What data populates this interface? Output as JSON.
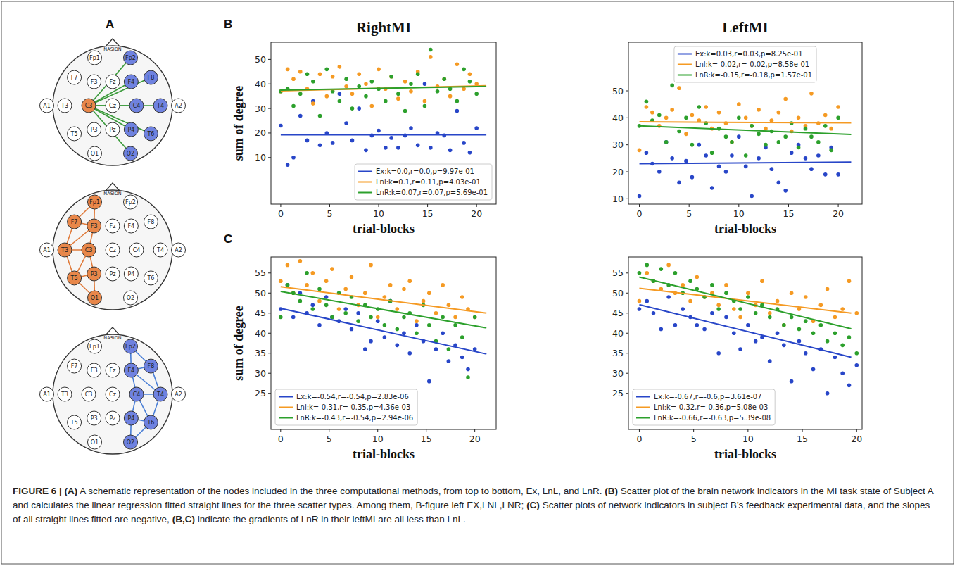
{
  "panel_labels": [
    "A",
    "B",
    "C"
  ],
  "head_diagrams": {
    "reference_label": "NASION",
    "electrodes": [
      "Fp1",
      "Fp2",
      "F7",
      "F3",
      "Fz",
      "F4",
      "F8",
      "A1",
      "T3",
      "C3",
      "Cz",
      "C4",
      "T4",
      "A2",
      "T5",
      "P3",
      "Pz",
      "P4",
      "T6",
      "O1",
      "O2"
    ],
    "diagrams": [
      {
        "color": "#3a9a3a",
        "left_nodes": [
          9
        ],
        "right_nodes": [
          1,
          5,
          6,
          11,
          12,
          17,
          18,
          20
        ],
        "edges": [
          [
            9,
            1
          ],
          [
            9,
            5
          ],
          [
            9,
            6
          ],
          [
            9,
            11
          ],
          [
            9,
            12
          ],
          [
            9,
            17
          ],
          [
            9,
            18
          ],
          [
            9,
            20
          ]
        ]
      },
      {
        "color": "#e07a3a",
        "left_nodes": [
          0,
          2,
          3,
          8,
          9,
          14,
          15,
          19
        ],
        "right_nodes": [],
        "edges": [
          [
            0,
            2
          ],
          [
            0,
            3
          ],
          [
            2,
            3
          ],
          [
            2,
            8
          ],
          [
            3,
            9
          ],
          [
            8,
            9
          ],
          [
            8,
            14
          ],
          [
            9,
            15
          ],
          [
            14,
            15
          ],
          [
            14,
            19
          ],
          [
            15,
            19
          ],
          [
            3,
            8
          ],
          [
            9,
            14
          ]
        ]
      },
      {
        "color": "#4a7fd6",
        "left_nodes": [],
        "right_nodes": [
          1,
          5,
          6,
          11,
          12,
          17,
          18,
          20
        ],
        "edges": [
          [
            1,
            6
          ],
          [
            1,
            5
          ],
          [
            6,
            5
          ],
          [
            6,
            12
          ],
          [
            5,
            11
          ],
          [
            12,
            11
          ],
          [
            12,
            18
          ],
          [
            11,
            17
          ],
          [
            18,
            17
          ],
          [
            18,
            20
          ],
          [
            17,
            20
          ],
          [
            5,
            12
          ],
          [
            11,
            18
          ]
        ]
      }
    ]
  },
  "chart_data": [
    {
      "type": "scatter",
      "title": "RightMI",
      "x_label": "trial-blocks",
      "y_label": "sum of degree",
      "x": [
        0,
        0.7,
        1.3,
        2,
        2.7,
        3.3,
        4,
        4.7,
        5.3,
        6,
        6.7,
        7.3,
        8,
        8.7,
        9.3,
        10,
        10.7,
        11.3,
        12,
        12.7,
        13.3,
        14,
        14.7,
        15.3,
        16,
        16.7,
        17.3,
        18,
        18.7,
        19.3,
        20
      ],
      "xlim": [
        -1,
        22
      ],
      "xticks": [
        0,
        5,
        10,
        15,
        20
      ],
      "ylim": [
        -9,
        57
      ],
      "yticks": [
        10,
        20,
        30,
        40,
        50
      ],
      "legend": "lower right",
      "fit_x": [
        0,
        21
      ],
      "series": [
        {
          "name": "Ex:k=0.0,r=0.0,p=9.97e-01",
          "color": "#2846c8",
          "values": [
            23,
            7,
            10,
            27,
            17,
            33,
            15,
            20,
            16,
            36,
            24,
            17,
            30,
            13,
            19,
            21,
            14,
            18,
            14,
            19,
            22,
            15,
            40,
            14,
            20,
            19,
            13,
            29,
            16,
            12,
            22
          ],
          "fit_values": [
            19.3,
            19.3
          ]
        },
        {
          "name": "Lnl:k=0.1,r=0.11,p=4.03e-01",
          "color": "#f59a23",
          "values": [
            37,
            46,
            42,
            45,
            38,
            32,
            44,
            35,
            43,
            47,
            39,
            36,
            44,
            40,
            31,
            46,
            38,
            43,
            34,
            41,
            37,
            45,
            33,
            51,
            39,
            42,
            35,
            48,
            38,
            44,
            40
          ],
          "fit_values": [
            37.2,
            39.3
          ]
        },
        {
          "name": "LnR:k=0.07,r=0.07,p=5.69e-01",
          "color": "#2ca02c",
          "values": [
            37,
            38,
            31,
            36,
            44,
            41,
            27,
            46,
            37,
            33,
            42,
            30,
            39,
            35,
            41,
            38,
            33,
            43,
            36,
            29,
            40,
            44,
            31,
            54,
            37,
            42,
            38,
            33,
            46,
            41,
            36
          ],
          "fit_values": [
            37.5,
            39.0
          ]
        }
      ]
    },
    {
      "type": "scatter",
      "title": "LeftMI",
      "x_label": "trial-blocks",
      "x": [
        0,
        0.7,
        1.3,
        2,
        2.7,
        3.3,
        4,
        4.7,
        5.3,
        6,
        6.7,
        7.3,
        8,
        8.7,
        9.3,
        10,
        10.7,
        11.3,
        12,
        12.7,
        13.3,
        14,
        14.7,
        15.3,
        16,
        16.7,
        17.3,
        18,
        18.7,
        19.3,
        20
      ],
      "xlim": [
        -1.1,
        22.4
      ],
      "xticks": [
        0,
        5,
        10,
        15,
        20
      ],
      "ylim": [
        8,
        68
      ],
      "yticks": [
        10,
        20,
        30,
        40,
        50
      ],
      "legend": "upper center",
      "fit_x": [
        0,
        21.3
      ],
      "series": [
        {
          "name": "Ex:k=0.03,r=0.03,p=8.25e-01",
          "color": "#2846c8",
          "values": [
            11,
            27,
            23,
            20,
            31,
            25,
            16,
            24,
            18,
            30,
            26,
            14,
            22,
            20,
            26,
            33,
            22,
            11,
            25,
            29,
            21,
            16,
            13,
            27,
            30,
            25,
            21,
            26,
            19,
            29,
            19
          ],
          "fit_values": [
            23.0,
            23.6
          ]
        },
        {
          "name": "Lnl:k=-0.02,r=-0.02,p=8.58e-01",
          "color": "#f59a23",
          "values": [
            28,
            44,
            42,
            37,
            40,
            43,
            51,
            34,
            41,
            39,
            44,
            36,
            42,
            38,
            31,
            45,
            40,
            37,
            43,
            36,
            39,
            42,
            47,
            35,
            40,
            37,
            49,
            38,
            41,
            36,
            44
          ],
          "fit_values": [
            38.5,
            38.1
          ]
        },
        {
          "name": "LnR:k=-0.15,r=-0.18,p=1.57e-01",
          "color": "#2ca02c",
          "values": [
            37,
            46,
            39,
            41,
            31,
            52,
            35,
            40,
            30,
            44,
            38,
            27,
            36,
            33,
            31,
            40,
            26,
            37,
            34,
            30,
            35,
            31,
            33,
            38,
            29,
            36,
            33,
            31,
            37,
            28,
            40
          ],
          "fit_values": [
            37.0,
            33.8
          ]
        }
      ]
    },
    {
      "type": "scatter",
      "x_label": "trial-blocks",
      "y_label": "sum of degree",
      "x": [
        0,
        0.7,
        1.3,
        2,
        2.7,
        3.3,
        4,
        4.7,
        5.3,
        6,
        6.7,
        7.3,
        8,
        8.7,
        9.3,
        10,
        10.7,
        11.3,
        12,
        12.7,
        13.3,
        14,
        14.7,
        15.3,
        16,
        16.7,
        17.3,
        18,
        18.7,
        19.3,
        20
      ],
      "xlim": [
        -1,
        22.2
      ],
      "xticks": [
        0,
        5,
        10,
        15,
        20
      ],
      "ylim": [
        16,
        59
      ],
      "yticks": [
        25,
        30,
        35,
        40,
        45,
        50,
        55
      ],
      "legend": "lower left",
      "fit_x": [
        0,
        21.2
      ],
      "series": [
        {
          "name": "Ex:k=-0.54,r=-0.54,p=2.83e-06",
          "color": "#2846c8",
          "values": [
            46,
            52,
            44,
            50,
            45,
            47,
            42,
            49,
            44,
            43,
            46,
            41,
            45,
            36,
            38,
            43,
            39,
            48,
            37,
            40,
            35,
            42,
            38,
            28,
            36,
            40,
            33,
            37,
            34,
            31,
            36
          ],
          "fit_values": [
            46.2,
            34.8
          ]
        },
        {
          "name": "Lnl:k=-0.31,r=-0.35,p=4.36e-03",
          "color": "#f59a23",
          "values": [
            53,
            57,
            50,
            58,
            52,
            55,
            48,
            53,
            56,
            46,
            51,
            54,
            47,
            50,
            57,
            44,
            49,
            52,
            46,
            51,
            53,
            43,
            48,
            50,
            45,
            52,
            47,
            44,
            49,
            46,
            44
          ],
          "fit_values": [
            51.6,
            45.0
          ]
        },
        {
          "name": "LnR:k=-0.43,r=-0.54,p=2.94e-06",
          "color": "#2ca02c",
          "values": [
            44,
            52,
            50,
            48,
            55,
            46,
            51,
            47,
            44,
            50,
            45,
            49,
            43,
            47,
            44,
            46,
            42,
            48,
            41,
            44,
            45,
            40,
            47,
            42,
            38,
            44,
            36,
            42,
            39,
            29,
            44
          ],
          "fit_values": [
            50.4,
            41.3
          ]
        }
      ]
    },
    {
      "type": "scatter",
      "x_label": "trial-blocks",
      "x": [
        0,
        0.7,
        1.3,
        2,
        2.7,
        3.3,
        4,
        4.7,
        5.3,
        6,
        6.7,
        7.3,
        8,
        8.7,
        9.3,
        10,
        10.7,
        11.3,
        12,
        12.7,
        13.3,
        14,
        14.7,
        15.3,
        16,
        16.7,
        17.3,
        18,
        18.7,
        19.3,
        20
      ],
      "xlim": [
        -1,
        20.5
      ],
      "xticks": [
        0,
        5,
        10,
        15,
        20
      ],
      "ylim": [
        16,
        59
      ],
      "yticks": [
        25,
        30,
        35,
        40,
        45,
        50,
        55
      ],
      "legend": "lower left",
      "fit_x": [
        0,
        19.5
      ],
      "series": [
        {
          "name": "Ex:k=-0.67,r=-0.6,p=3.61e-07",
          "color": "#2846c8",
          "values": [
            46,
            48,
            45,
            41,
            49,
            42,
            46,
            44,
            42,
            41,
            45,
            35,
            44,
            40,
            36,
            42,
            38,
            39,
            33,
            40,
            37,
            28,
            38,
            35,
            31,
            36,
            25,
            34,
            30,
            27,
            32
          ],
          "fit_values": [
            47.1,
            34.0
          ]
        },
        {
          "name": "Lnl:k=-0.32,r=-0.36,p=5.08e-03",
          "color": "#f59a23",
          "values": [
            48,
            55,
            53,
            51,
            57,
            50,
            52,
            48,
            54,
            49,
            50,
            47,
            52,
            46,
            44,
            50,
            47,
            53,
            45,
            48,
            42,
            50,
            46,
            49,
            43,
            47,
            51,
            44,
            46,
            53,
            45
          ],
          "fit_values": [
            51.2,
            45.0
          ]
        },
        {
          "name": "LnR:k=-0.66,r=-0.63,p=5.39e-08",
          "color": "#2ca02c",
          "values": [
            55,
            57,
            53,
            56,
            52,
            55,
            50,
            53,
            51,
            49,
            52,
            46,
            50,
            48,
            46,
            49,
            45,
            47,
            44,
            46,
            42,
            44,
            41,
            43,
            40,
            42,
            38,
            40,
            37,
            39,
            35
          ],
          "fit_values": [
            54.0,
            41.1
          ]
        }
      ]
    }
  ],
  "caption": [
    {
      "text": "FIGURE 6 | ",
      "bold": true
    },
    {
      "text": "(A)",
      "bold": true
    },
    {
      "text": " A schematic representation of the nodes included in the three computational methods, from top to bottom, Ex, LnL, and LnR. ",
      "bold": false
    },
    {
      "text": "(B)",
      "bold": true
    },
    {
      "text": " Scatter plot of the brain network indicators in the MI task state of Subject A and calculates the linear regression fitted straight lines for the three scatter types. Among them, B-figure left EX,LNL,LNR; ",
      "bold": false
    },
    {
      "text": "(C)",
      "bold": true
    },
    {
      "text": " Scatter plots of network indicators in subject B’s feedback experimental data, and the slopes of all straight lines fitted are negative, ",
      "bold": false
    },
    {
      "text": "(B,C)",
      "bold": true
    },
    {
      "text": " indicate the gradients of LnR in their leftMI are all less than LnL.",
      "bold": false
    }
  ]
}
